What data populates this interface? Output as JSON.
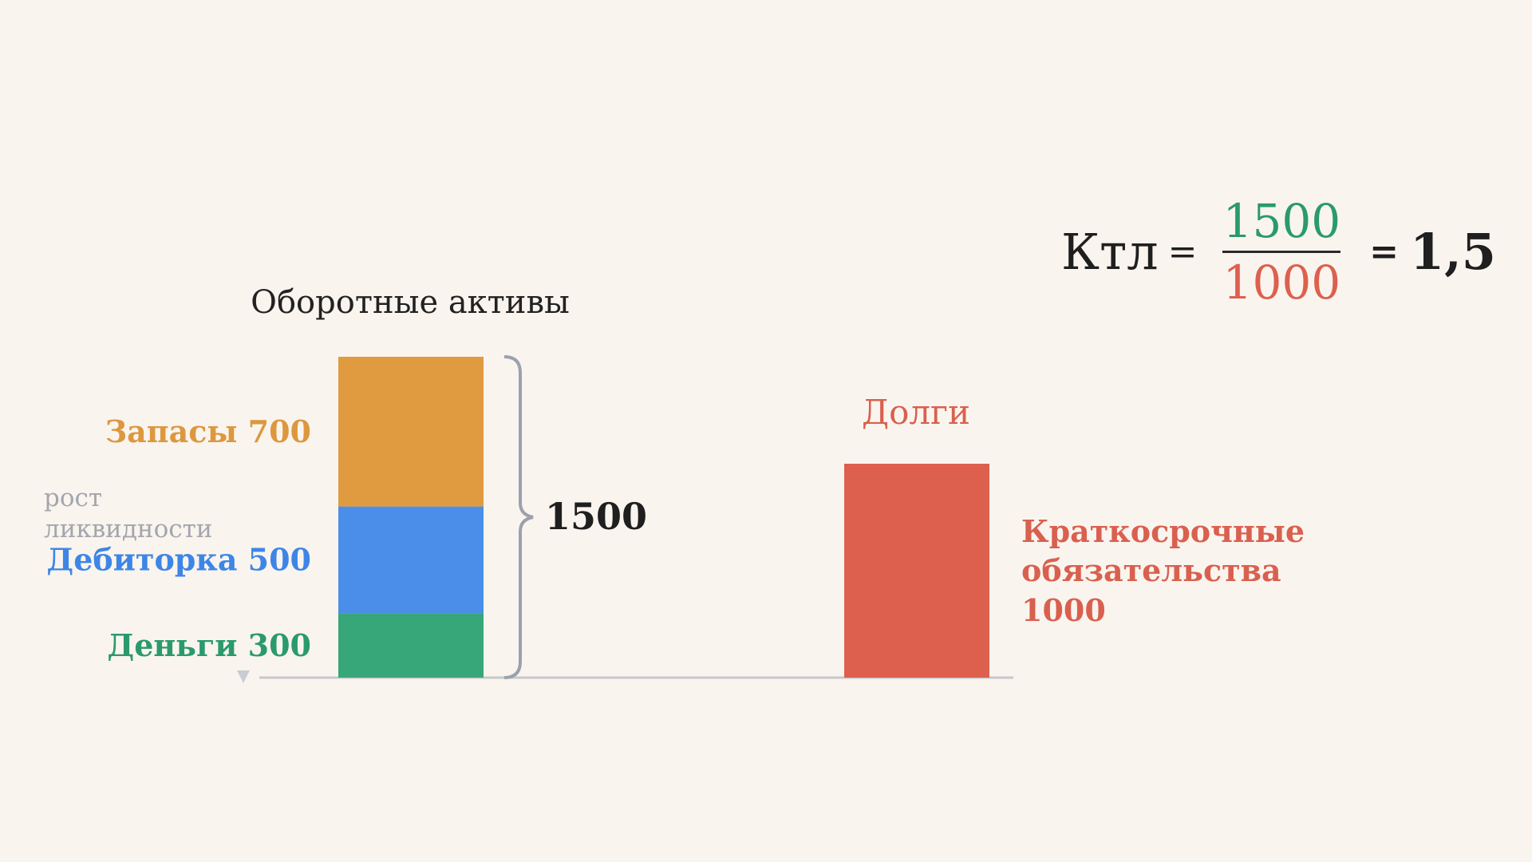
{
  "chart_data": {
    "type": "bar",
    "title": "",
    "assets": {
      "label": "Оборотные активы",
      "stack": [
        {
          "name": "Деньги",
          "value": 300,
          "label": "Деньги 300",
          "color": "#37a678"
        },
        {
          "name": "Дебиторка",
          "value": 500,
          "label": "Дебиторка 500",
          "color": "#4a8ee9"
        },
        {
          "name": "Запасы",
          "value": 700,
          "label": "Запасы 700",
          "color": "#e09b40"
        }
      ],
      "total": 1500,
      "total_label": "1500"
    },
    "debts": {
      "label": "Долги",
      "value": 1000,
      "color": "#dd604f",
      "caption": [
        "Краткосрочные",
        "обязательства",
        "1000"
      ]
    },
    "arrow_label": [
      "рост",
      "ликвидности"
    ],
    "ylim": [
      0,
      1500
    ],
    "grid": false
  },
  "formula": {
    "lhs": "Ктл",
    "equals": "=",
    "numerator": "1500",
    "denominator": "1000",
    "result": "1,5",
    "numerator_color": "#2a9a6c",
    "denominator_color": "#dd604f"
  }
}
